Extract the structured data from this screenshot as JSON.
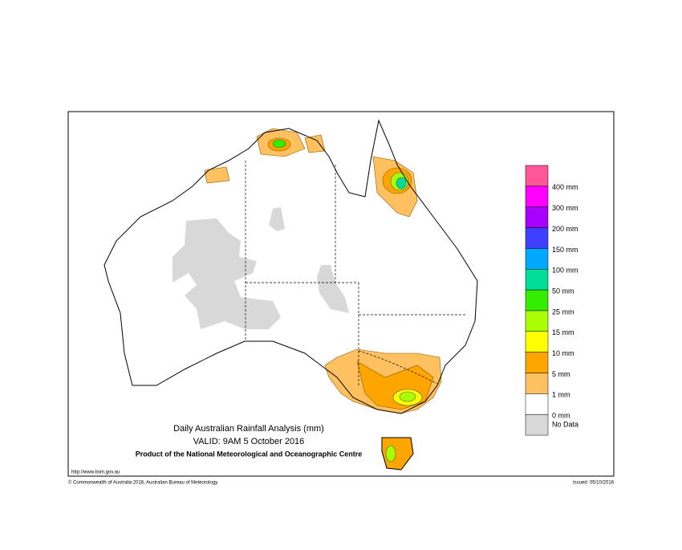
{
  "title_lines": [
    "Daily Australian Rainfall Analysis (mm)",
    "VALID: 9AM  5 October 2016",
    "Product of the National Meteorological and Oceanographic Centre"
  ],
  "url": "http://www.bom.gov.au",
  "copyright": "© Commonwealth of Australia 2016, Australian Bureau of Meteorology",
  "issued": "Issued: 05/10/2016",
  "legend": {
    "swatches": [
      "#ff5599",
      "#ff00ff",
      "#aa00ff",
      "#3f3fff",
      "#00a8ff",
      "#00dd99",
      "#33ee00",
      "#aaff00",
      "#ffff00",
      "#ffa500",
      "#ffc060",
      "#ffffff",
      "#d8d8d8"
    ],
    "labels": [
      "400 mm",
      "300 mm",
      "200 mm",
      "150 mm",
      "100 mm",
      "50 mm",
      "25 mm",
      "15 mm",
      "10 mm",
      "5 mm",
      "1 mm",
      "0 mm",
      "No Data"
    ]
  }
}
